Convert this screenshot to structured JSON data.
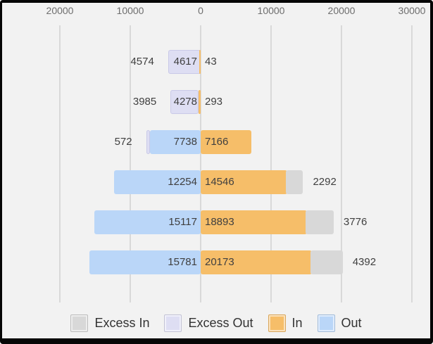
{
  "colors": {
    "background": "#f2f2f2",
    "frame_border": "#060606",
    "gridline": "#d9d9d9",
    "bar_label_text": "#3f3f3f",
    "axis_text": "#6e6e6e",
    "legend_text": "#333333",
    "excess_in": "#d8d8d8",
    "excess_out": "#dedef3",
    "in": "#f6be69",
    "out": "#bad6f8"
  },
  "chart_data": {
    "type": "bar",
    "variant": "horizontal-diverging-stacked (butterfly)",
    "title": "",
    "x_axis": {
      "position": "top",
      "tick_labels": [
        "20000",
        "10000",
        "0",
        "10000",
        "20000",
        "30000"
      ],
      "tick_values": [
        -20000,
        -10000,
        0,
        10000,
        20000,
        30000
      ],
      "range": [
        -28200,
        33300
      ],
      "grid": true
    },
    "rows": [
      {
        "out": 4617,
        "in": 43,
        "excess_out": 4574
      },
      {
        "out": 4278,
        "in": 293,
        "excess_out": 3985
      },
      {
        "out": 7738,
        "in": 7166,
        "excess_out": 572
      },
      {
        "out": 12254,
        "in": 14546,
        "excess_in": 2292
      },
      {
        "out": 15117,
        "in": 18893,
        "excess_in": 3776
      },
      {
        "out": 15781,
        "in": 20173,
        "excess_in": 4392
      }
    ],
    "legend": {
      "position": "bottom",
      "items": [
        {
          "label": "Excess In",
          "color": "#d8d8d8"
        },
        {
          "label": "Excess Out",
          "color": "#dedef3"
        },
        {
          "label": "In",
          "color": "#f6be69"
        },
        {
          "label": "Out",
          "color": "#bad6f8"
        }
      ]
    }
  }
}
